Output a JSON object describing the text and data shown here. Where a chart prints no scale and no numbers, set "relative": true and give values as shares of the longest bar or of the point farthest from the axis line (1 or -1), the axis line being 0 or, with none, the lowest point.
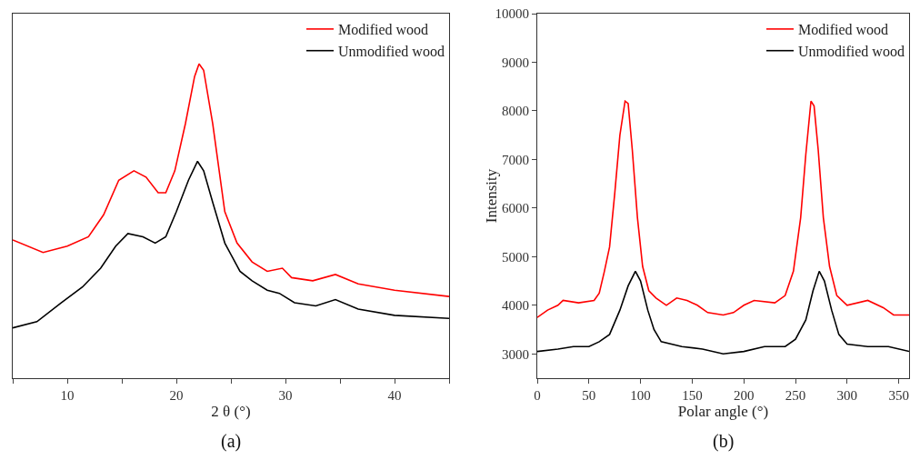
{
  "chart_data": [
    {
      "type": "line",
      "xlabel": "2 θ (°)",
      "annotations": [
        "(a)"
      ],
      "relative": true,
      "tick_labels": "x",
      "legend": "top right",
      "grid": false,
      "marker": "none",
      "line_style": "solid",
      "xlim": [
        5,
        45
      ],
      "xticks": [
        {
          "value": 5,
          "label": null
        },
        10,
        {
          "value": 15,
          "label": null
        },
        20,
        {
          "value": 25,
          "label": null
        },
        30,
        {
          "value": 35,
          "label": null
        },
        40,
        {
          "value": 45,
          "label": null
        }
      ],
      "series": [
        {
          "name": "Modified wood",
          "color": "#ff0000",
          "x": [
            5,
            7.78,
            10,
            11.94,
            13.33,
            14.72,
            16.11,
            17.22,
            18.33,
            19.03,
            19.86,
            20.83,
            21.67,
            22.08,
            22.5,
            23.33,
            24.44,
            25.56,
            26.94,
            28.33,
            29.72,
            30.56,
            32.5,
            34.58,
            36.67,
            40,
            45
          ],
          "values": [
            0.44,
            0.4,
            0.42,
            0.45,
            0.52,
            0.63,
            0.66,
            0.64,
            0.59,
            0.59,
            0.66,
            0.81,
            0.96,
            1.0,
            0.98,
            0.81,
            0.53,
            0.43,
            0.37,
            0.34,
            0.35,
            0.32,
            0.31,
            0.33,
            0.3,
            0.28,
            0.26
          ]
        },
        {
          "name": "Unmodified wood",
          "color": "#000000",
          "x": [
            5,
            7.22,
            9.44,
            11.39,
            13.06,
            14.44,
            15.56,
            16.94,
            18.06,
            19.03,
            20,
            21.11,
            21.94,
            22.5,
            23.33,
            24.44,
            25.83,
            26.94,
            28.33,
            29.44,
            30.83,
            32.78,
            34.58,
            36.67,
            40,
            45
          ],
          "values": [
            0.16,
            0.18,
            0.24,
            0.29,
            0.35,
            0.42,
            0.46,
            0.45,
            0.43,
            0.45,
            0.53,
            0.63,
            0.69,
            0.66,
            0.56,
            0.43,
            0.34,
            0.31,
            0.28,
            0.27,
            0.24,
            0.23,
            0.25,
            0.22,
            0.2,
            0.19
          ]
        }
      ]
    },
    {
      "type": "line",
      "xlabel": "Polar angle (°)",
      "ylabel": "Intensity",
      "annotations": [
        "(b)"
      ],
      "legend": "top right",
      "grid": false,
      "marker": "none",
      "line_style": "solid",
      "xlim": [
        0,
        360
      ],
      "xticks": [
        0,
        50,
        100,
        150,
        200,
        250,
        300,
        350
      ],
      "ylim": [
        2500,
        10000
      ],
      "yticks": [
        3000,
        4000,
        5000,
        6000,
        7000,
        8000,
        9000,
        10000
      ],
      "series": [
        {
          "name": "Modified wood",
          "color": "#ff0000",
          "x": [
            0,
            10,
            20,
            25,
            40,
            55,
            60,
            65,
            70,
            75,
            80,
            85,
            88,
            92,
            97,
            102,
            108,
            115,
            125,
            135,
            145,
            155,
            165,
            180,
            190,
            200,
            210,
            230,
            240,
            248,
            255,
            260,
            265,
            268,
            272,
            277,
            283,
            290,
            300,
            320,
            335,
            345,
            360
          ],
          "values": [
            3750,
            3900,
            4000,
            4100,
            4050,
            4100,
            4250,
            4700,
            5200,
            6300,
            7500,
            8200,
            8150,
            7200,
            5800,
            4800,
            4300,
            4150,
            4000,
            4150,
            4100,
            4000,
            3850,
            3800,
            3850,
            4000,
            4100,
            4050,
            4200,
            4700,
            5800,
            7100,
            8200,
            8100,
            7200,
            5800,
            4800,
            4200,
            4000,
            4100,
            3950,
            3800,
            3800
          ]
        },
        {
          "name": "Unmodified wood",
          "color": "#000000",
          "x": [
            0,
            20,
            35,
            50,
            60,
            70,
            80,
            88,
            95,
            100,
            107,
            113,
            120,
            140,
            160,
            180,
            200,
            220,
            240,
            250,
            260,
            267,
            273,
            278,
            285,
            292,
            300,
            320,
            340,
            360
          ],
          "values": [
            3050,
            3100,
            3150,
            3150,
            3250,
            3400,
            3900,
            4400,
            4700,
            4500,
            3900,
            3500,
            3250,
            3150,
            3100,
            3000,
            3050,
            3150,
            3150,
            3300,
            3700,
            4300,
            4700,
            4500,
            3900,
            3400,
            3200,
            3150,
            3150,
            3050
          ]
        }
      ]
    }
  ]
}
